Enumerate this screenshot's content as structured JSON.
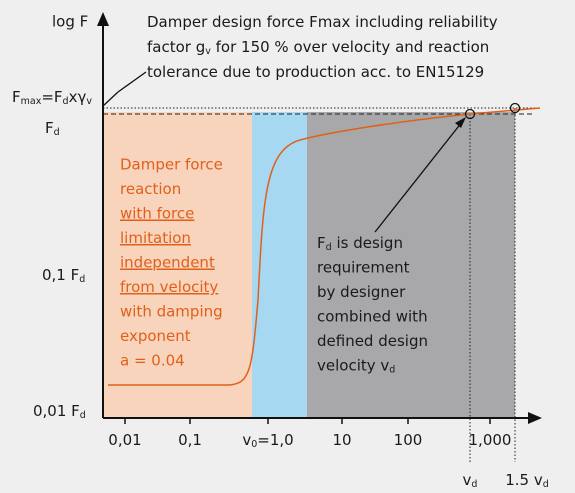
{
  "y_axis_label": "log F",
  "description": [
    [
      "Damper design force Fmax including reliability"
    ],
    [
      "factor g",
      "v",
      " for 150 % over velocity and reaction"
    ],
    [
      "tolerance due to production acc. to EN15129"
    ]
  ],
  "y_labels": [
    [
      "F",
      "max",
      "=F",
      "d",
      "xγ",
      "v"
    ],
    [
      "F",
      "d"
    ],
    [
      "0,1 F",
      "d"
    ],
    [
      "0,01 F",
      "d"
    ]
  ],
  "x_labels": [
    [
      "0,01"
    ],
    [
      "0,1"
    ],
    [
      "v",
      "0",
      "=1,0"
    ],
    [
      "10"
    ],
    [
      "100"
    ],
    [
      "1,000"
    ],
    [
      "v",
      "d"
    ],
    [
      "1.5 v",
      "d"
    ]
  ],
  "orange_text": [
    "Damper force",
    "reaction",
    "with force ",
    "limitation ",
    "independent ",
    "from velocity",
    "with damping",
    "exponent",
    "a = 0.04"
  ],
  "gray_text": [
    [
      "F",
      "d",
      " is design"
    ],
    [
      "requirement"
    ],
    [
      "by designer"
    ],
    [
      "combined with"
    ],
    [
      "defined design"
    ],
    [
      "velocity v",
      "d"
    ]
  ]
}
